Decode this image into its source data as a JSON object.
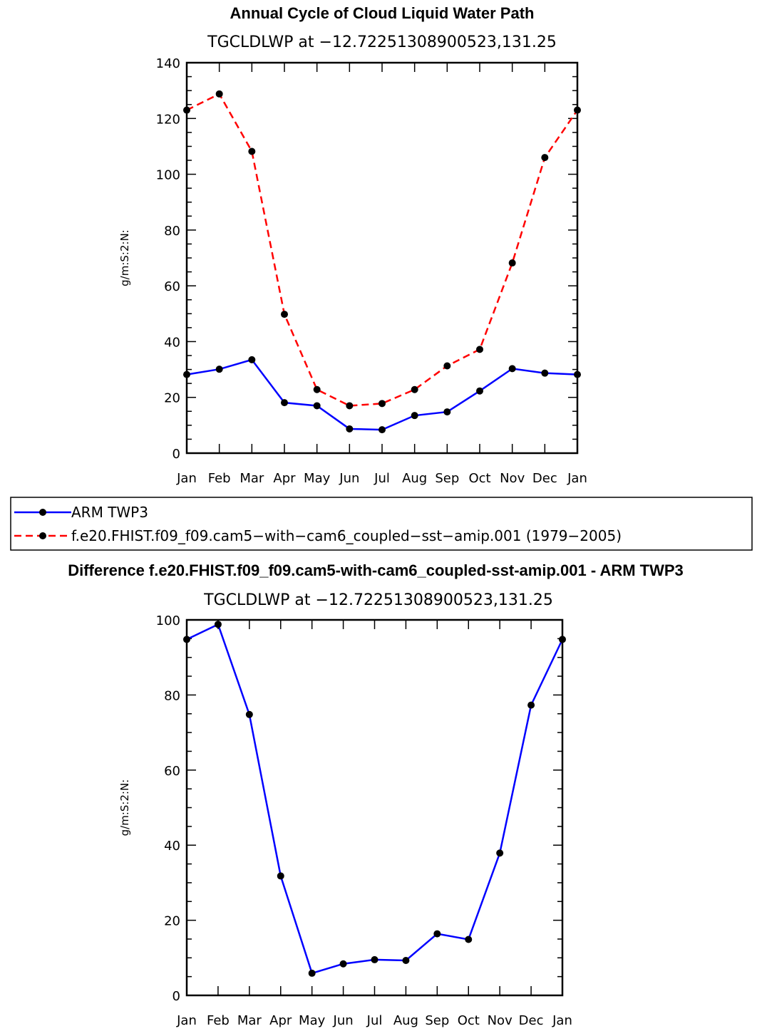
{
  "chart_data": [
    {
      "type": "line",
      "title": "Annual Cycle of Cloud Liquid Water Path",
      "subtitle": "TGCLDLWP  at  −12.72251308900523,131.25",
      "xlabel": "",
      "ylabel": "g/m:S:2:N:",
      "categories": [
        "Jan",
        "Feb",
        "Mar",
        "Apr",
        "May",
        "Jun",
        "Jul",
        "Aug",
        "Sep",
        "Oct",
        "Nov",
        "Dec",
        "Jan"
      ],
      "ylim": [
        0,
        140
      ],
      "yticks": [
        0,
        20,
        40,
        60,
        80,
        100,
        120,
        140
      ],
      "series": [
        {
          "name": "ARM TWP3",
          "color": "#0000ff",
          "dash": "solid",
          "values": [
            28.2,
            30.1,
            33.5,
            18.1,
            17.0,
            8.7,
            8.4,
            13.5,
            14.8,
            22.3,
            30.3,
            28.7,
            28.2
          ]
        },
        {
          "name": "f.e20.FHIST.f09_f09.cam5−with−cam6_coupled−sst−amip.001 (1979−2005)",
          "color": "#ff0000",
          "dash": "dashed",
          "values": [
            123.0,
            128.8,
            108.2,
            49.8,
            22.8,
            17.0,
            17.8,
            22.8,
            31.3,
            37.2,
            68.2,
            106.0,
            123.0
          ]
        }
      ],
      "legend": [
        {
          "label": "ARM TWP3",
          "color": "#0000ff",
          "dash": "solid"
        },
        {
          "label": "f.e20.FHIST.f09_f09.cam5−with−cam6_coupled−sst−amip.001 (1979−2005)",
          "color": "#ff0000",
          "dash": "dashed"
        }
      ]
    },
    {
      "type": "line",
      "title": "Difference f.e20.FHIST.f09_f09.cam5-with-cam6_coupled-sst-amip.001 - ARM TWP3",
      "subtitle": "TGCLDLWP  at  −12.72251308900523,131.25",
      "xlabel": "",
      "ylabel": "g/m:S:2:N:",
      "categories": [
        "Jan",
        "Feb",
        "Mar",
        "Apr",
        "May",
        "Jun",
        "Jul",
        "Aug",
        "Sep",
        "Oct",
        "Nov",
        "Dec",
        "Jan"
      ],
      "ylim": [
        0,
        100
      ],
      "yticks": [
        0,
        20,
        40,
        60,
        80,
        100
      ],
      "series": [
        {
          "name": "Difference",
          "color": "#0000ff",
          "dash": "solid",
          "values": [
            94.8,
            98.8,
            74.8,
            31.8,
            5.9,
            8.4,
            9.5,
            9.3,
            16.4,
            14.9,
            37.9,
            77.3,
            94.8
          ]
        }
      ]
    }
  ]
}
